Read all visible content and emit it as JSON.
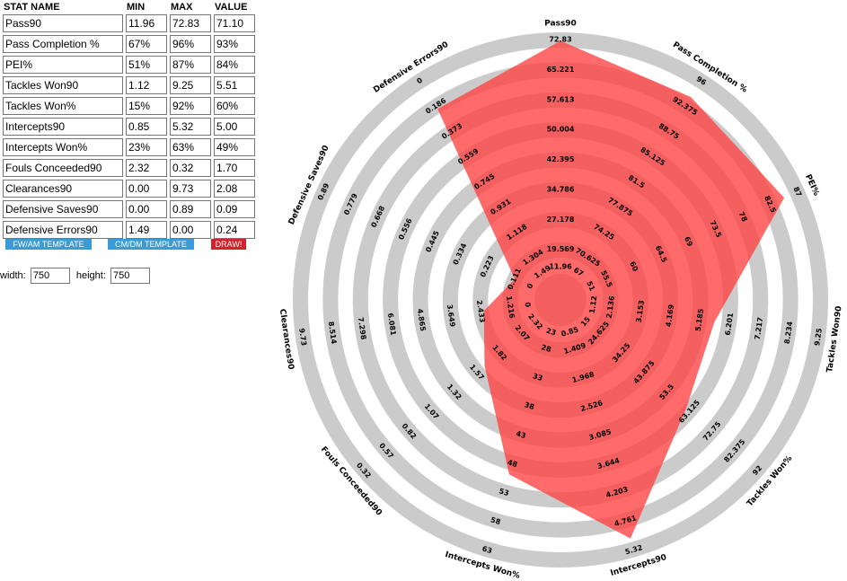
{
  "table": {
    "headers": {
      "name": "STAT NAME",
      "min": "MIN",
      "max": "MAX",
      "value": "VALUE"
    },
    "rows": [
      {
        "name": "Pass90",
        "min": "11.96",
        "max": "72.83",
        "value": "71.10"
      },
      {
        "name": "Pass Completion %",
        "min": "67%",
        "max": "96%",
        "value": "93%"
      },
      {
        "name": "PEI%",
        "min": "51%",
        "max": "87%",
        "value": "84%"
      },
      {
        "name": "Tackles  Won90",
        "min": "1.12",
        "max": "9.25",
        "value": "5.51"
      },
      {
        "name": "Tackles  Won%",
        "min": "15%",
        "max": "92%",
        "value": "60%"
      },
      {
        "name": "Intercepts90",
        "min": "0.85",
        "max": "5.32",
        "value": "5.00"
      },
      {
        "name": "Intercepts Won%",
        "min": "23%",
        "max": "63%",
        "value": "49%"
      },
      {
        "name": "Fouls Conceeded90",
        "min": "2.32",
        "max": "0.32",
        "value": "1.70"
      },
      {
        "name": "Clearances90",
        "min": "0.00",
        "max": "9.73",
        "value": "2.08"
      },
      {
        "name": "Defensive Saves90",
        "min": "0.00",
        "max": "0.89",
        "value": "0.09"
      },
      {
        "name": "Defensive Errors90",
        "min": "1.49",
        "max": "0.00",
        "value": "0.24"
      }
    ]
  },
  "buttons": {
    "fw_am": "FW/AM TEMPLATE",
    "cm_dm": "CM/DM TEMPLATE",
    "draw": "DRAW!"
  },
  "size": {
    "width_label": "width:",
    "width_value": "750",
    "height_label": "height:",
    "height_value": "750"
  },
  "colors": {
    "ring_gray": "#cbcbcb",
    "polygon": "#ff4040",
    "button_blue": "#3a9bd9",
    "button_red": "#d2232a"
  },
  "chart_data": {
    "type": "radar",
    "axes": [
      {
        "label": "Pass90",
        "ticks": [
          "11.96",
          "19.569",
          "27.178",
          "34.786",
          "42.395",
          "50.004",
          "57.613",
          "65.221",
          "72.83"
        ],
        "value": 71.1,
        "fraction": 0.972
      },
      {
        "label": "Pass Completion %",
        "ticks": [
          "67",
          "70.625",
          "74.25",
          "77.875",
          "81.5",
          "85.125",
          "88.75",
          "92.375",
          "96"
        ],
        "value": 93,
        "fraction": 0.897
      },
      {
        "label": "PEI%",
        "ticks": [
          "51",
          "55.5",
          "60",
          "64.5",
          "69",
          "73.5",
          "78",
          "82.5",
          "87"
        ],
        "value": 84,
        "fraction": 0.917
      },
      {
        "label": "Tackles  Won90",
        "ticks": [
          "1.12",
          "2.136",
          "3.153",
          "4.169",
          "5.185",
          "6.201",
          "7.217",
          "8.234",
          "9.25"
        ],
        "value": 5.51,
        "fraction": 0.54
      },
      {
        "label": "Tackles  Won%",
        "ticks": [
          "15",
          "24.625",
          "34.25",
          "43.875",
          "53.5",
          "63.125",
          "72.75",
          "82.375",
          "92"
        ],
        "value": 60,
        "fraction": 0.584
      },
      {
        "label": "Intercepts90",
        "ticks": [
          "0.85",
          "1.409",
          "1.968",
          "2.526",
          "3.085",
          "3.644",
          "4.203",
          "4.761",
          "5.32"
        ],
        "value": 5.0,
        "fraction": 0.928
      },
      {
        "label": "Intercepts Won%",
        "ticks": [
          "23",
          "28",
          "33",
          "38",
          "43",
          "48",
          "53",
          "58",
          "63"
        ],
        "value": 49,
        "fraction": 0.65
      },
      {
        "label": "Fouls Conceeded90",
        "ticks": [
          "2.32",
          "2.07",
          "1.82",
          "1.57",
          "1.32",
          "1.07",
          "0.82",
          "0.57",
          "0.32"
        ],
        "value": 1.7,
        "fraction": 0.31
      },
      {
        "label": "Clearances90",
        "ticks": [
          "0",
          "1.216",
          "2.433",
          "3.649",
          "4.865",
          "6.081",
          "7.298",
          "8.514",
          "9.73"
        ],
        "value": 2.08,
        "fraction": 0.214
      },
      {
        "label": "Defensive Saves90",
        "ticks": [
          "0",
          "0.111",
          "0.223",
          "0.334",
          "0.445",
          "0.556",
          "0.668",
          "0.779",
          "0.89"
        ],
        "value": 0.09,
        "fraction": 0.101
      },
      {
        "label": "Defensive Errors90",
        "ticks": [
          "1.49",
          "1.304",
          "1.118",
          "0.931",
          "0.745",
          "0.559",
          "0.373",
          "0.186",
          "0"
        ],
        "value": 0.24,
        "fraction": 0.839
      }
    ]
  }
}
